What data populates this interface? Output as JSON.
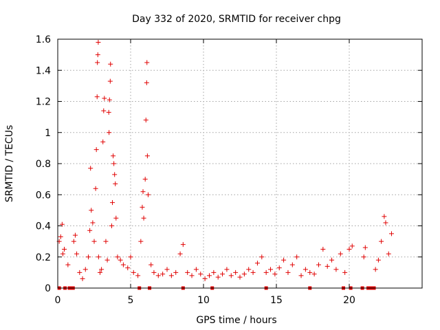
{
  "chart_data": {
    "type": "scatter",
    "title": "Day 332 of 2020, SRMTID for receiver chpg",
    "xlabel": "GPS time / hours",
    "ylabel": "SRMTID / TECUs",
    "xlim": [
      0,
      25
    ],
    "ylim": [
      0,
      1.6
    ],
    "grid": true,
    "x_ticks": [
      0,
      5,
      10,
      15,
      20
    ],
    "x_tick_labels": [
      "0",
      "5",
      "10",
      "15",
      "20"
    ],
    "y_ticks": [
      0,
      0.2,
      0.4,
      0.6,
      0.8,
      1.0,
      1.2,
      1.4,
      1.6
    ],
    "y_tick_labels": [
      "0",
      "0.2",
      "0.4",
      "0.6",
      "0.8",
      "1",
      "1.2",
      "1.4",
      "1.6"
    ],
    "series": [
      {
        "name": "SRMTID",
        "marker": "+",
        "color": "#e00000",
        "points": [
          [
            0.1,
            0.3
          ],
          [
            0.2,
            0.33
          ],
          [
            0.3,
            0.41
          ],
          [
            0.35,
            0.22
          ],
          [
            0.45,
            0.25
          ],
          [
            0.7,
            0.15
          ],
          [
            1.1,
            0.3
          ],
          [
            1.2,
            0.34
          ],
          [
            1.3,
            0.22
          ],
          [
            1.5,
            0.1
          ],
          [
            1.7,
            0.06
          ],
          [
            1.9,
            0.12
          ],
          [
            2.1,
            0.2
          ],
          [
            2.2,
            0.37
          ],
          [
            2.25,
            0.77
          ],
          [
            2.3,
            0.5
          ],
          [
            2.4,
            0.42
          ],
          [
            2.5,
            0.3
          ],
          [
            2.6,
            0.64
          ],
          [
            2.65,
            0.89
          ],
          [
            2.7,
            1.23
          ],
          [
            2.72,
            1.45
          ],
          [
            2.75,
            1.5
          ],
          [
            2.78,
            1.58
          ],
          [
            2.8,
            0.2
          ],
          [
            2.9,
            0.1
          ],
          [
            3.0,
            0.12
          ],
          [
            3.1,
            0.94
          ],
          [
            3.15,
            1.14
          ],
          [
            3.2,
            1.22
          ],
          [
            3.3,
            0.3
          ],
          [
            3.4,
            0.18
          ],
          [
            3.5,
            1.13
          ],
          [
            3.55,
            1.21
          ],
          [
            3.6,
            1.33
          ],
          [
            3.62,
            1.44
          ],
          [
            3.52,
            1.0
          ],
          [
            3.7,
            0.4
          ],
          [
            3.75,
            0.55
          ],
          [
            3.8,
            0.85
          ],
          [
            3.85,
            0.8
          ],
          [
            3.9,
            0.73
          ],
          [
            3.95,
            0.67
          ],
          [
            4.0,
            0.45
          ],
          [
            4.1,
            0.2
          ],
          [
            4.3,
            0.18
          ],
          [
            4.5,
            0.15
          ],
          [
            4.8,
            0.13
          ],
          [
            5.0,
            0.2
          ],
          [
            5.2,
            0.1
          ],
          [
            5.5,
            0.08
          ],
          [
            5.7,
            0.3
          ],
          [
            5.8,
            0.52
          ],
          [
            5.85,
            0.62
          ],
          [
            5.9,
            0.45
          ],
          [
            6.0,
            0.7
          ],
          [
            6.05,
            1.08
          ],
          [
            6.1,
            1.32
          ],
          [
            6.12,
            1.45
          ],
          [
            6.15,
            0.85
          ],
          [
            6.2,
            0.6
          ],
          [
            6.4,
            0.15
          ],
          [
            6.6,
            0.1
          ],
          [
            6.9,
            0.08
          ],
          [
            7.2,
            0.09
          ],
          [
            7.5,
            0.12
          ],
          [
            7.8,
            0.08
          ],
          [
            8.1,
            0.1
          ],
          [
            8.4,
            0.22
          ],
          [
            8.6,
            0.28
          ],
          [
            8.9,
            0.1
          ],
          [
            9.2,
            0.08
          ],
          [
            9.5,
            0.12
          ],
          [
            9.8,
            0.09
          ],
          [
            10.1,
            0.06
          ],
          [
            10.4,
            0.08
          ],
          [
            10.7,
            0.1
          ],
          [
            11.0,
            0.07
          ],
          [
            11.3,
            0.09
          ],
          [
            11.6,
            0.12
          ],
          [
            11.9,
            0.08
          ],
          [
            12.2,
            0.1
          ],
          [
            12.5,
            0.07
          ],
          [
            12.8,
            0.09
          ],
          [
            13.1,
            0.12
          ],
          [
            13.4,
            0.1
          ],
          [
            13.7,
            0.16
          ],
          [
            14.0,
            0.2
          ],
          [
            14.3,
            0.1
          ],
          [
            14.6,
            0.12
          ],
          [
            14.9,
            0.09
          ],
          [
            15.2,
            0.13
          ],
          [
            15.5,
            0.18
          ],
          [
            15.8,
            0.1
          ],
          [
            16.1,
            0.15
          ],
          [
            16.4,
            0.2
          ],
          [
            16.7,
            0.08
          ],
          [
            17.0,
            0.12
          ],
          [
            17.3,
            0.1
          ],
          [
            17.6,
            0.09
          ],
          [
            17.9,
            0.15
          ],
          [
            18.2,
            0.25
          ],
          [
            18.5,
            0.14
          ],
          [
            18.8,
            0.18
          ],
          [
            19.1,
            0.12
          ],
          [
            19.4,
            0.22
          ],
          [
            19.7,
            0.1
          ],
          [
            20.0,
            0.25
          ],
          [
            20.2,
            0.27
          ],
          [
            21.0,
            0.2
          ],
          [
            21.1,
            0.26
          ],
          [
            21.8,
            0.12
          ],
          [
            22.0,
            0.18
          ],
          [
            22.2,
            0.3
          ],
          [
            22.4,
            0.46
          ],
          [
            22.5,
            0.42
          ],
          [
            22.7,
            0.22
          ],
          [
            22.9,
            0.35
          ]
        ]
      }
    ],
    "baseline_markers_x": [
      0.1,
      0.5,
      0.8,
      0.95,
      1.05,
      5.6,
      6.3,
      8.6,
      10.6,
      14.3,
      17.3,
      19.6,
      20.1,
      20.9,
      21.3,
      21.5,
      21.7
    ]
  }
}
